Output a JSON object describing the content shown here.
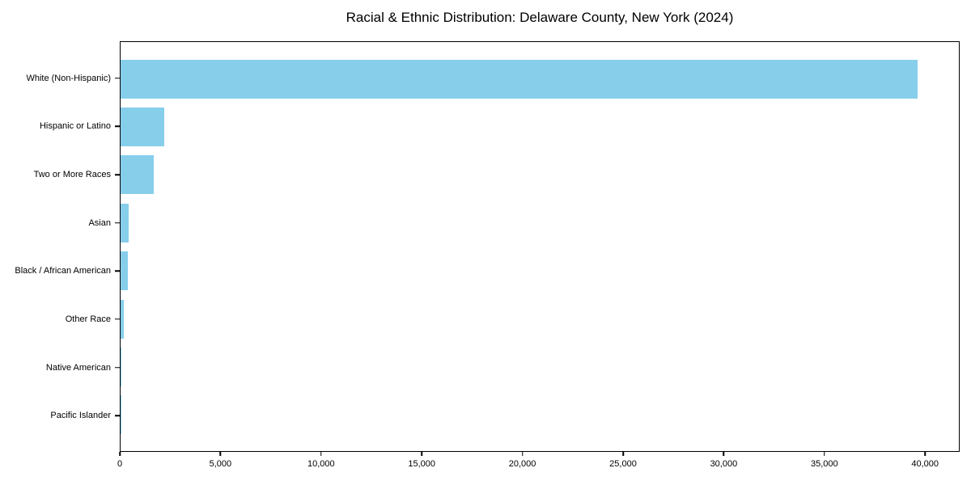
{
  "figure": {
    "background": "#ffffff",
    "text_color": "#000000"
  },
  "chart_data": {
    "type": "bar",
    "orientation": "horizontal",
    "title": "Racial & Ethnic Distribution: Delaware County, New York (2024)",
    "categories": [
      "White (Non-Hispanic)",
      "Hispanic or Latino",
      "Two or More Races",
      "Asian",
      "Black / African American",
      "Other Race",
      "Native American",
      "Pacific Islander"
    ],
    "values": [
      39680,
      2180,
      1640,
      400,
      370,
      155,
      55,
      15
    ],
    "xlabel": "",
    "ylabel": "",
    "xlim": [
      0,
      41720
    ],
    "xtick_values": [
      0,
      5000,
      10000,
      15000,
      20000,
      25000,
      30000,
      35000,
      40000
    ],
    "xtick_labels": [
      "0",
      "5,000",
      "10,000",
      "15,000",
      "20,000",
      "25,000",
      "30,000",
      "35,000",
      "40,000"
    ],
    "bar_color": "#87CEEB",
    "bar_height_frac": 0.8,
    "grid": false,
    "legend": null
  }
}
